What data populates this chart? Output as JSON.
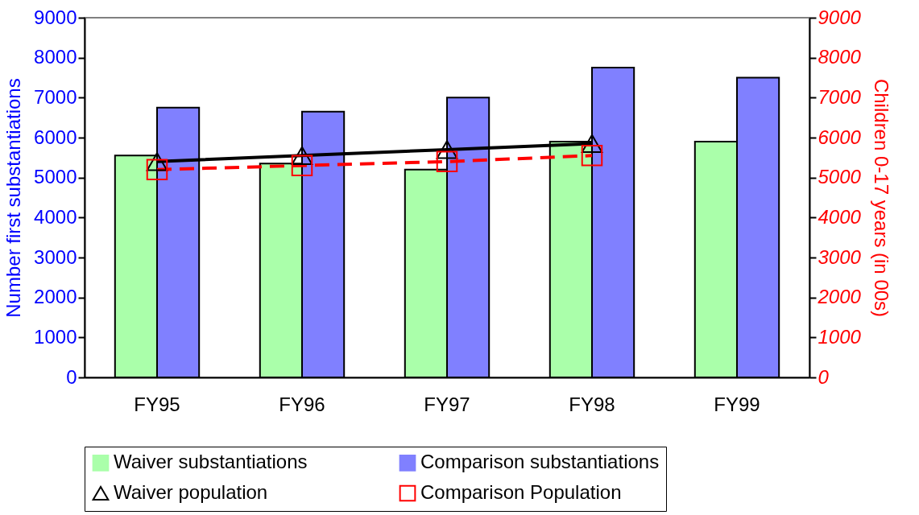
{
  "chart_data": {
    "type": "bar",
    "categories": [
      "FY95",
      "FY96",
      "FY97",
      "FY98",
      "FY99"
    ],
    "ylabel": "Number first substantiations",
    "y2label": "Children 0-17 years (in 00s)",
    "ylim": [
      0,
      9000
    ],
    "yticks": [
      0,
      1000,
      2000,
      3000,
      4000,
      5000,
      6000,
      7000,
      8000,
      9000
    ],
    "y2lim": [
      0,
      9000
    ],
    "y2ticks": [
      0,
      1000,
      2000,
      3000,
      4000,
      5000,
      6000,
      7000,
      8000,
      9000
    ],
    "legend": "bottom",
    "series": [
      {
        "name": "Waiver substantiations",
        "color": "#aaffaa",
        "values": [
          5550,
          5350,
          5200,
          5900,
          5900
        ]
      },
      {
        "name": "Comparison substantiations",
        "color": "#8080ff",
        "values": [
          6750,
          6650,
          7000,
          7750,
          7500
        ]
      },
      {
        "name": "Waiver population",
        "type": "line",
        "axis": "y2",
        "color": "#000000",
        "marker": "triangle",
        "line_style": "solid",
        "values": [
          5400,
          5550,
          5700,
          5850,
          null
        ]
      },
      {
        "name": "Comparison Population",
        "type": "line",
        "axis": "y2",
        "color": "#ff0000",
        "marker": "square",
        "line_style": "dashed",
        "values": [
          5200,
          5300,
          5400,
          5550,
          null
        ]
      }
    ]
  }
}
